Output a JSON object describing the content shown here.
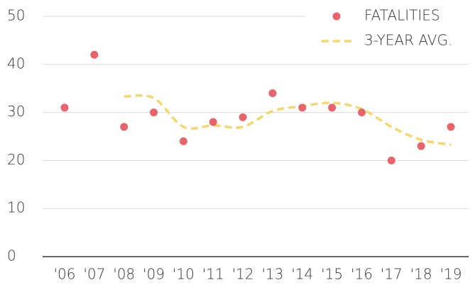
{
  "chart_data": {
    "type": "scatter",
    "categories": [
      "'06",
      "'07",
      "'08",
      "'09",
      "'10",
      "'11",
      "'12",
      "'13",
      "'14",
      "'15",
      "'16",
      "'17",
      "'18",
      "'19"
    ],
    "series": [
      {
        "name": "FATALITIES",
        "color": "#e8646a",
        "style": "markers",
        "values": [
          31,
          42,
          27,
          30,
          24,
          28,
          29,
          34,
          31,
          31,
          30,
          20,
          23,
          27
        ]
      },
      {
        "name": "3-YEAR AVG.",
        "color": "#f5d76e",
        "style": "dashed-line",
        "values": [
          null,
          null,
          33.3,
          33,
          27,
          27.3,
          27,
          30.3,
          31.3,
          32,
          30.7,
          27,
          24.3,
          23.3
        ]
      }
    ],
    "ylim": [
      0,
      50
    ],
    "yticks": [
      0,
      10,
      20,
      30,
      40,
      50
    ],
    "grid": true,
    "legend": "upper right"
  }
}
